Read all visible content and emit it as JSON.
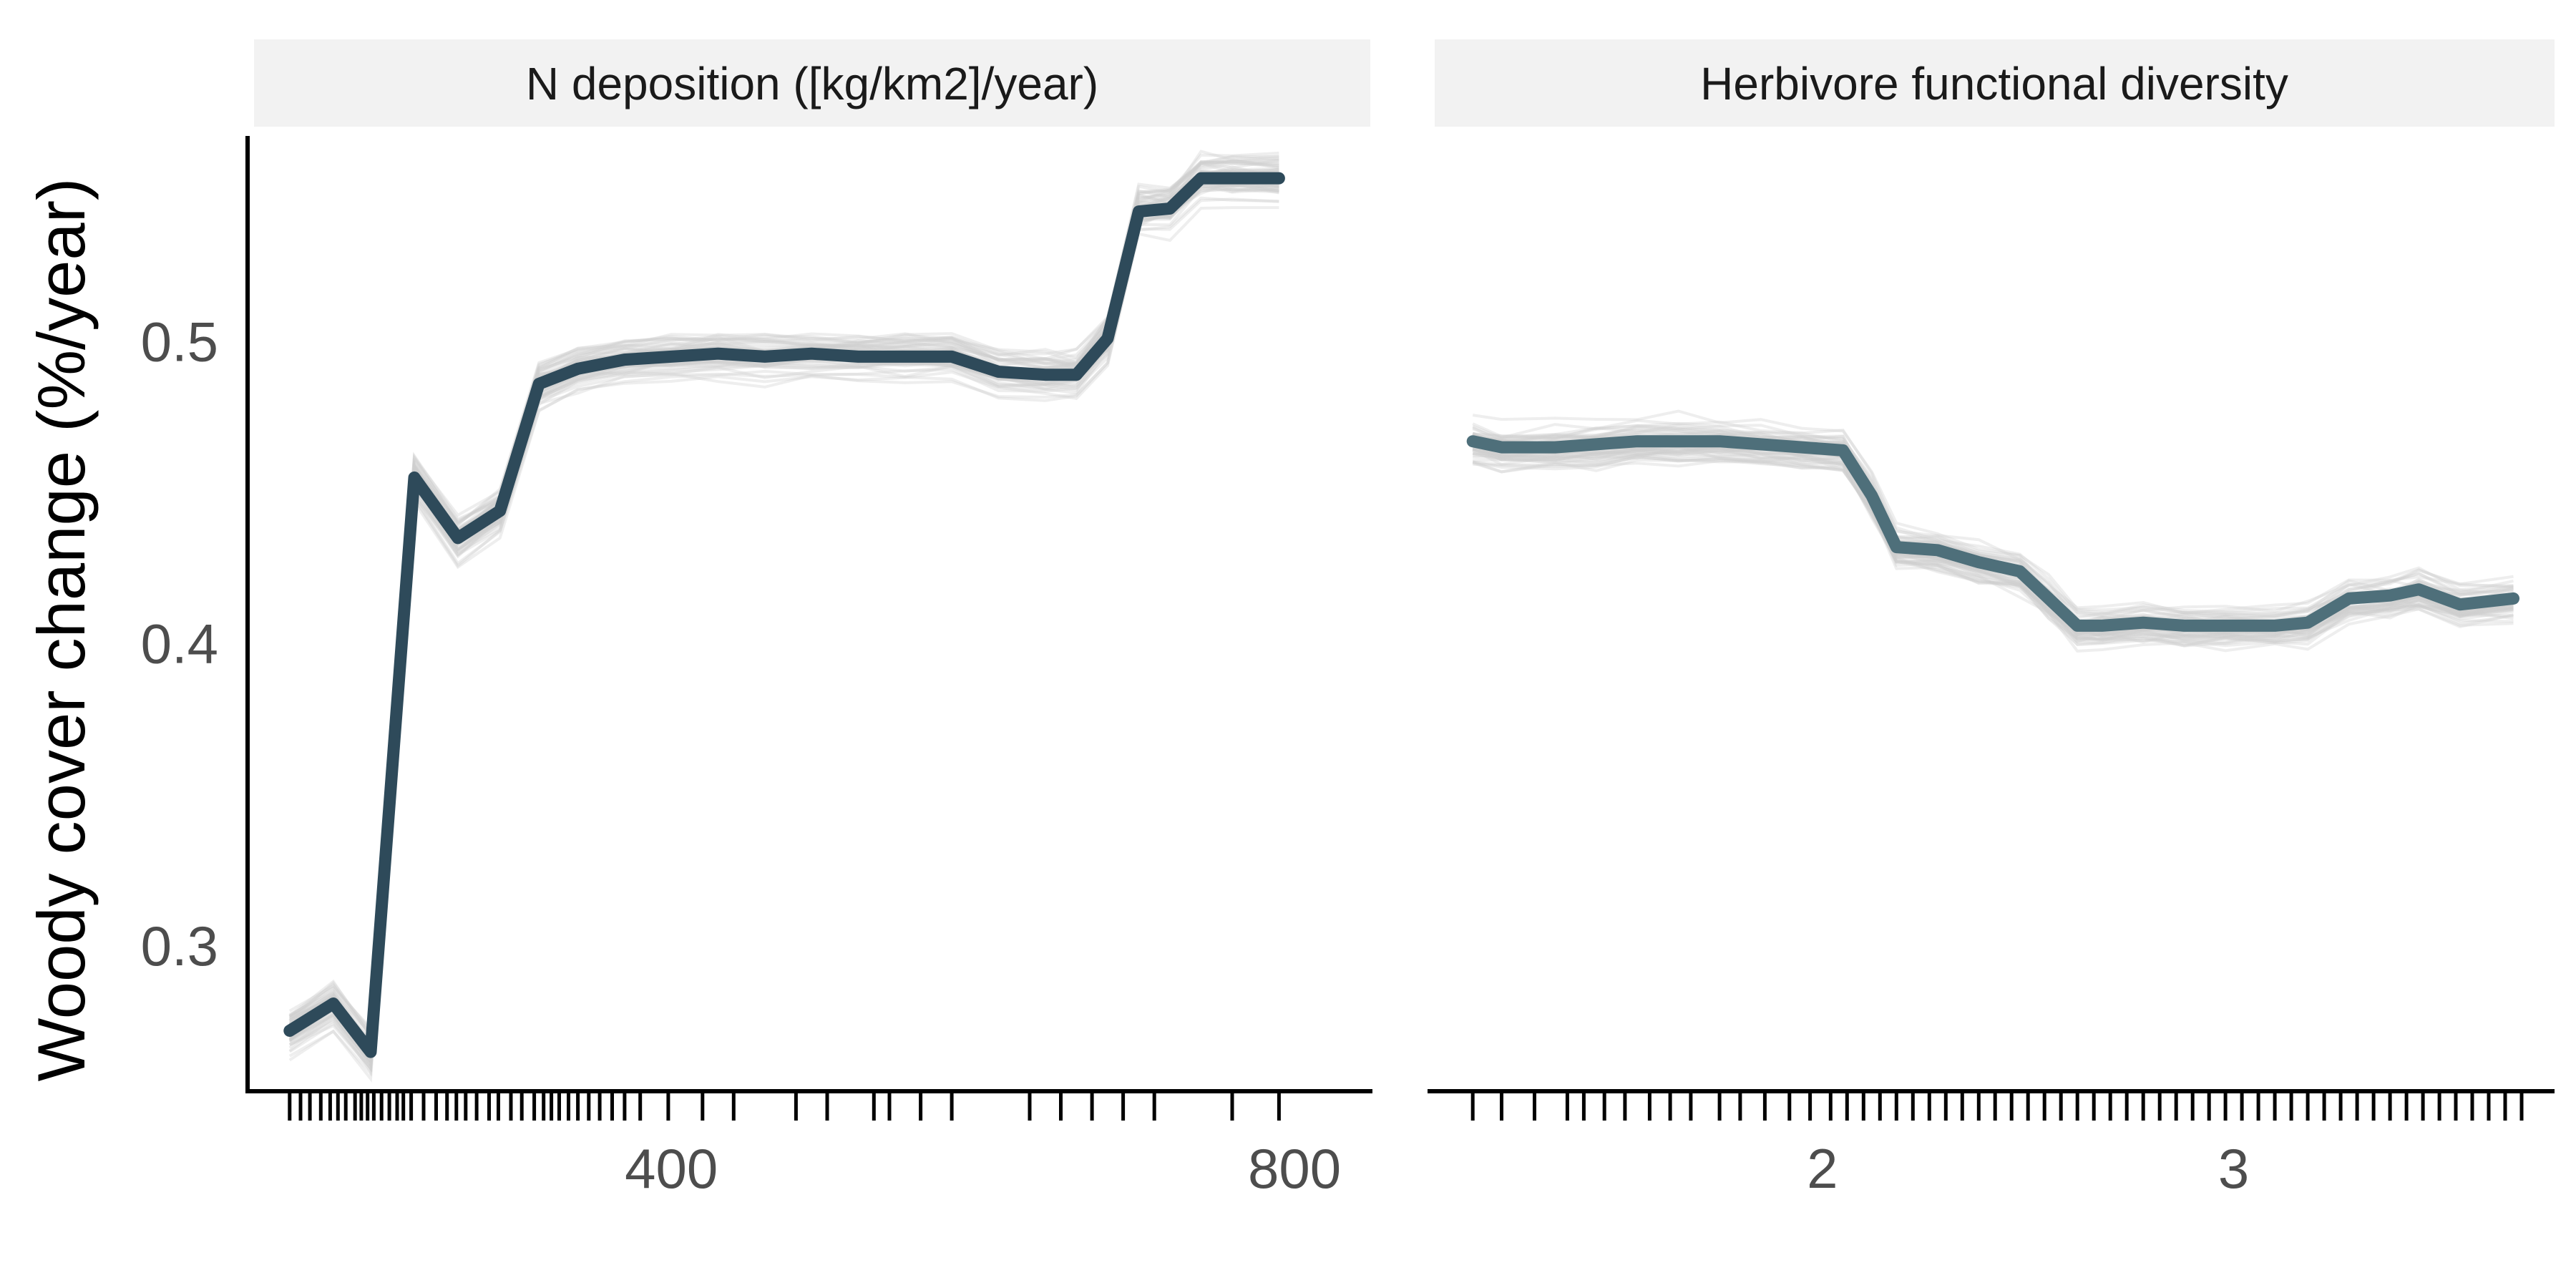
{
  "figure": {
    "y_axis_label": "Woody cover change (%/year)"
  },
  "chart_data": [
    {
      "type": "line",
      "panel_title": "N deposition ([kg/km2]/year)",
      "xlabel": "",
      "ylabel": "Woody cover change (%/year)",
      "xlim": [
        128,
        850
      ],
      "ylim": [
        0.252,
        0.568
      ],
      "x_ticks": [
        400,
        800
      ],
      "y_ticks": [
        0.3,
        0.4,
        0.5
      ],
      "grid": false,
      "legend": "none",
      "colors": {
        "mean_line": "#2e4a5a",
        "bootstrap_lines": "#cfcfcf",
        "rug": "#000000"
      },
      "series": [
        {
          "name": "",
          "x": [
            155,
            183,
            207,
            235,
            263,
            290,
            315,
            340,
            370,
            400,
            430,
            460,
            490,
            520,
            550,
            580,
            610,
            640,
            660,
            680,
            700,
            720,
            740,
            760,
            790
          ],
          "y": [
            0.272,
            0.281,
            0.265,
            0.455,
            0.435,
            0.444,
            0.486,
            0.491,
            0.494,
            0.495,
            0.496,
            0.495,
            0.496,
            0.495,
            0.495,
            0.495,
            0.49,
            0.489,
            0.489,
            0.501,
            0.543,
            0.544,
            0.554,
            0.554,
            0.554
          ]
        }
      ],
      "rug_x": [
        155,
        162,
        168,
        175,
        181,
        186,
        191,
        197,
        201,
        205,
        209,
        214,
        219,
        224,
        228,
        233,
        241,
        249,
        256,
        262,
        268,
        275,
        283,
        289,
        297,
        304,
        312,
        318,
        323,
        328,
        334,
        340,
        347,
        354,
        362,
        370,
        380,
        398,
        420,
        440,
        480,
        500,
        530,
        540,
        560,
        580,
        630,
        650,
        670,
        690,
        710,
        760,
        790
      ]
    },
    {
      "type": "line",
      "panel_title": "Herbivore functional diversity",
      "xlabel": "",
      "ylabel": "",
      "xlim": [
        1.04,
        3.78
      ],
      "ylim": [
        0.252,
        0.568
      ],
      "x_ticks": [
        2,
        3
      ],
      "y_ticks": [],
      "grid": false,
      "legend": "none",
      "colors": {
        "mean_line": "#4e6f7a",
        "bootstrap_lines": "#cfcfcf",
        "rug": "#000000"
      },
      "series": [
        {
          "name": "",
          "x": [
            1.15,
            1.22,
            1.35,
            1.45,
            1.55,
            1.65,
            1.75,
            1.85,
            1.95,
            2.05,
            2.12,
            2.18,
            2.28,
            2.38,
            2.48,
            2.55,
            2.62,
            2.68,
            2.78,
            2.88,
            2.98,
            3.1,
            3.18,
            3.28,
            3.38,
            3.45,
            3.55,
            3.68
          ],
          "y": [
            0.467,
            0.465,
            0.465,
            0.466,
            0.467,
            0.467,
            0.467,
            0.466,
            0.465,
            0.464,
            0.449,
            0.432,
            0.431,
            0.427,
            0.424,
            0.415,
            0.406,
            0.406,
            0.407,
            0.406,
            0.406,
            0.406,
            0.407,
            0.415,
            0.416,
            0.418,
            0.413,
            0.415
          ]
        }
      ],
      "rug_x": [
        1.15,
        1.22,
        1.3,
        1.38,
        1.42,
        1.47,
        1.52,
        1.58,
        1.63,
        1.68,
        1.75,
        1.8,
        1.86,
        1.92,
        1.97,
        2.02,
        2.06,
        2.1,
        2.14,
        2.18,
        2.22,
        2.26,
        2.3,
        2.34,
        2.38,
        2.42,
        2.46,
        2.5,
        2.54,
        2.58,
        2.62,
        2.66,
        2.7,
        2.74,
        2.78,
        2.82,
        2.86,
        2.9,
        2.94,
        2.98,
        3.02,
        3.06,
        3.1,
        3.14,
        3.18,
        3.22,
        3.26,
        3.3,
        3.34,
        3.38,
        3.42,
        3.46,
        3.5,
        3.54,
        3.58,
        3.62,
        3.66,
        3.7
      ]
    }
  ]
}
